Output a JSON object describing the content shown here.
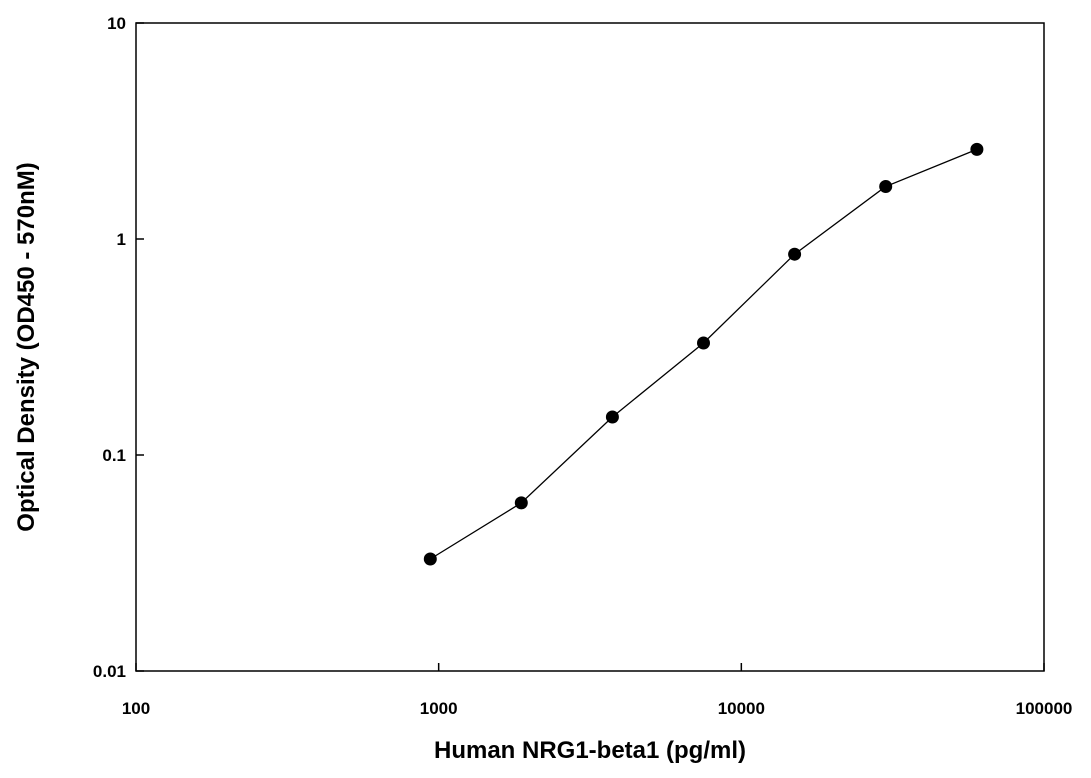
{
  "chart_data": {
    "type": "line",
    "title": "",
    "xlabel": "Human NRG1-beta1 (pg/ml)",
    "ylabel": "Optical Density (OD450 - 570nM)",
    "x_scale": "log",
    "y_scale": "log",
    "xlim": [
      100,
      100000
    ],
    "ylim": [
      0.01,
      10
    ],
    "x_ticks": [
      {
        "value": 100,
        "label": "100"
      },
      {
        "value": 1000,
        "label": "1000"
      },
      {
        "value": 10000,
        "label": "10000"
      },
      {
        "value": 100000,
        "label": "100000"
      }
    ],
    "y_ticks": [
      {
        "value": 0.01,
        "label": "0.01"
      },
      {
        "value": 0.1,
        "label": "0.1"
      },
      {
        "value": 1,
        "label": "1"
      },
      {
        "value": 10,
        "label": "10"
      }
    ],
    "grid": false,
    "legend": "none",
    "series": [
      {
        "color": "#000000",
        "marker": "circle",
        "x": [
          938,
          1875,
          3750,
          7500,
          15000,
          30000,
          60000
        ],
        "y": [
          0.033,
          0.06,
          0.15,
          0.33,
          0.85,
          1.75,
          2.6
        ]
      }
    ]
  }
}
